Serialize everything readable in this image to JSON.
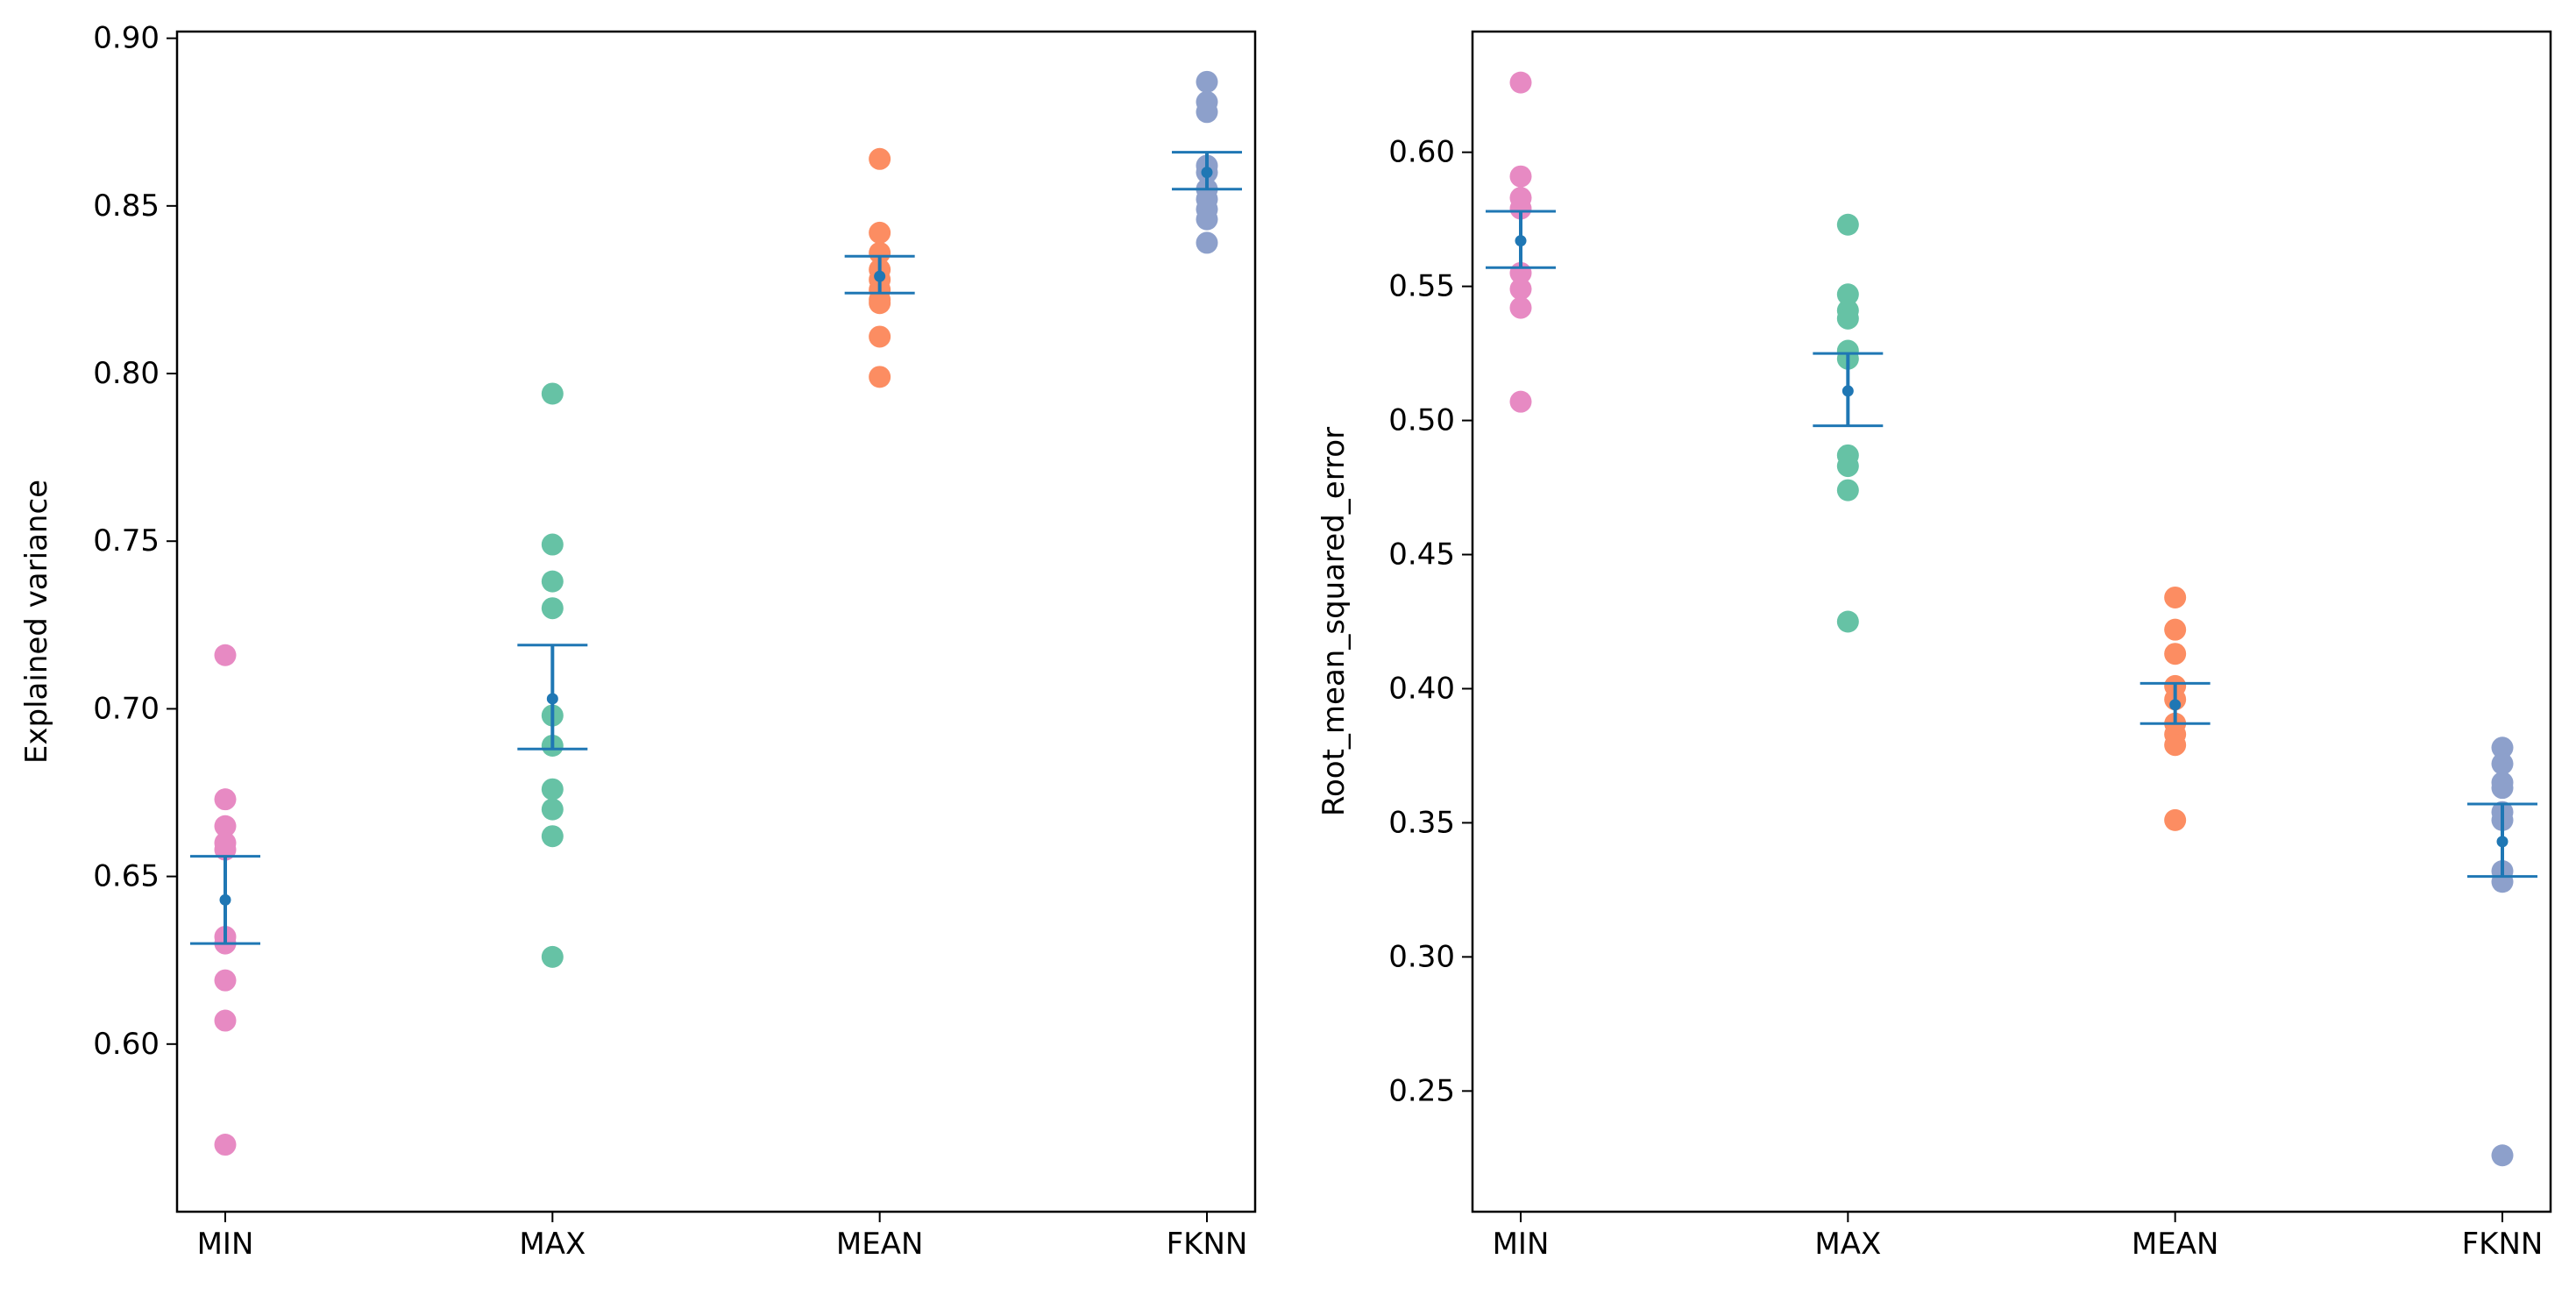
{
  "chart_data": [
    {
      "type": "scatter",
      "ylabel": "Explained variance",
      "xlabel": "",
      "ylim": [
        0.55,
        0.902
      ],
      "yticks": [
        0.6,
        0.65,
        0.7,
        0.75,
        0.8,
        0.85,
        0.9
      ],
      "ytick_labels": [
        "0.60",
        "0.65",
        "0.70",
        "0.75",
        "0.80",
        "0.85",
        "0.90"
      ],
      "categories": [
        "MIN",
        "MAX",
        "MEAN",
        "FKNN"
      ],
      "colors": [
        "#e78ac3",
        "#66c2a5",
        "#fc8d62",
        "#8da0cb"
      ],
      "errorbar_color": "#1f77b4",
      "series": [
        {
          "name": "MIN",
          "values": [
            0.716,
            0.673,
            0.665,
            0.66,
            0.658,
            0.632,
            0.63,
            0.619,
            0.607,
            0.57
          ],
          "mean": 0.643,
          "lower": 0.63,
          "upper": 0.656
        },
        {
          "name": "MAX",
          "values": [
            0.794,
            0.749,
            0.738,
            0.73,
            0.698,
            0.689,
            0.676,
            0.67,
            0.662,
            0.626
          ],
          "mean": 0.703,
          "lower": 0.688,
          "upper": 0.719
        },
        {
          "name": "MEAN",
          "values": [
            0.864,
            0.842,
            0.836,
            0.831,
            0.828,
            0.825,
            0.822,
            0.821,
            0.811,
            0.799
          ],
          "mean": 0.829,
          "lower": 0.824,
          "upper": 0.835
        },
        {
          "name": "FKNN",
          "values": [
            0.887,
            0.881,
            0.878,
            0.862,
            0.86,
            0.855,
            0.852,
            0.849,
            0.846,
            0.839
          ],
          "mean": 0.86,
          "lower": 0.855,
          "upper": 0.866
        }
      ]
    },
    {
      "type": "scatter",
      "ylabel": "Root_mean_squared_error",
      "xlabel": "",
      "ylim": [
        0.205,
        0.645
      ],
      "yticks": [
        0.25,
        0.3,
        0.35,
        0.4,
        0.45,
        0.5,
        0.55,
        0.6
      ],
      "ytick_labels": [
        "0.25",
        "0.30",
        "0.35",
        "0.40",
        "0.45",
        "0.50",
        "0.55",
        "0.60"
      ],
      "categories": [
        "MIN",
        "MAX",
        "MEAN",
        "FKNN"
      ],
      "colors": [
        "#e78ac3",
        "#66c2a5",
        "#fc8d62",
        "#8da0cb"
      ],
      "errorbar_color": "#1f77b4",
      "series": [
        {
          "name": "MIN",
          "values": [
            0.626,
            0.591,
            0.583,
            0.579,
            0.555,
            0.549,
            0.542,
            0.507
          ],
          "mean": 0.567,
          "lower": 0.557,
          "upper": 0.578
        },
        {
          "name": "MAX",
          "values": [
            0.573,
            0.547,
            0.541,
            0.538,
            0.526,
            0.523,
            0.487,
            0.483,
            0.474,
            0.425
          ],
          "mean": 0.511,
          "lower": 0.498,
          "upper": 0.525
        },
        {
          "name": "MEAN",
          "values": [
            0.434,
            0.422,
            0.413,
            0.401,
            0.396,
            0.387,
            0.383,
            0.379,
            0.351
          ],
          "mean": 0.394,
          "lower": 0.387,
          "upper": 0.402
        },
        {
          "name": "FKNN",
          "values": [
            0.378,
            0.372,
            0.365,
            0.363,
            0.354,
            0.351,
            0.332,
            0.328,
            0.226
          ],
          "mean": 0.343,
          "lower": 0.33,
          "upper": 0.357
        }
      ]
    }
  ]
}
